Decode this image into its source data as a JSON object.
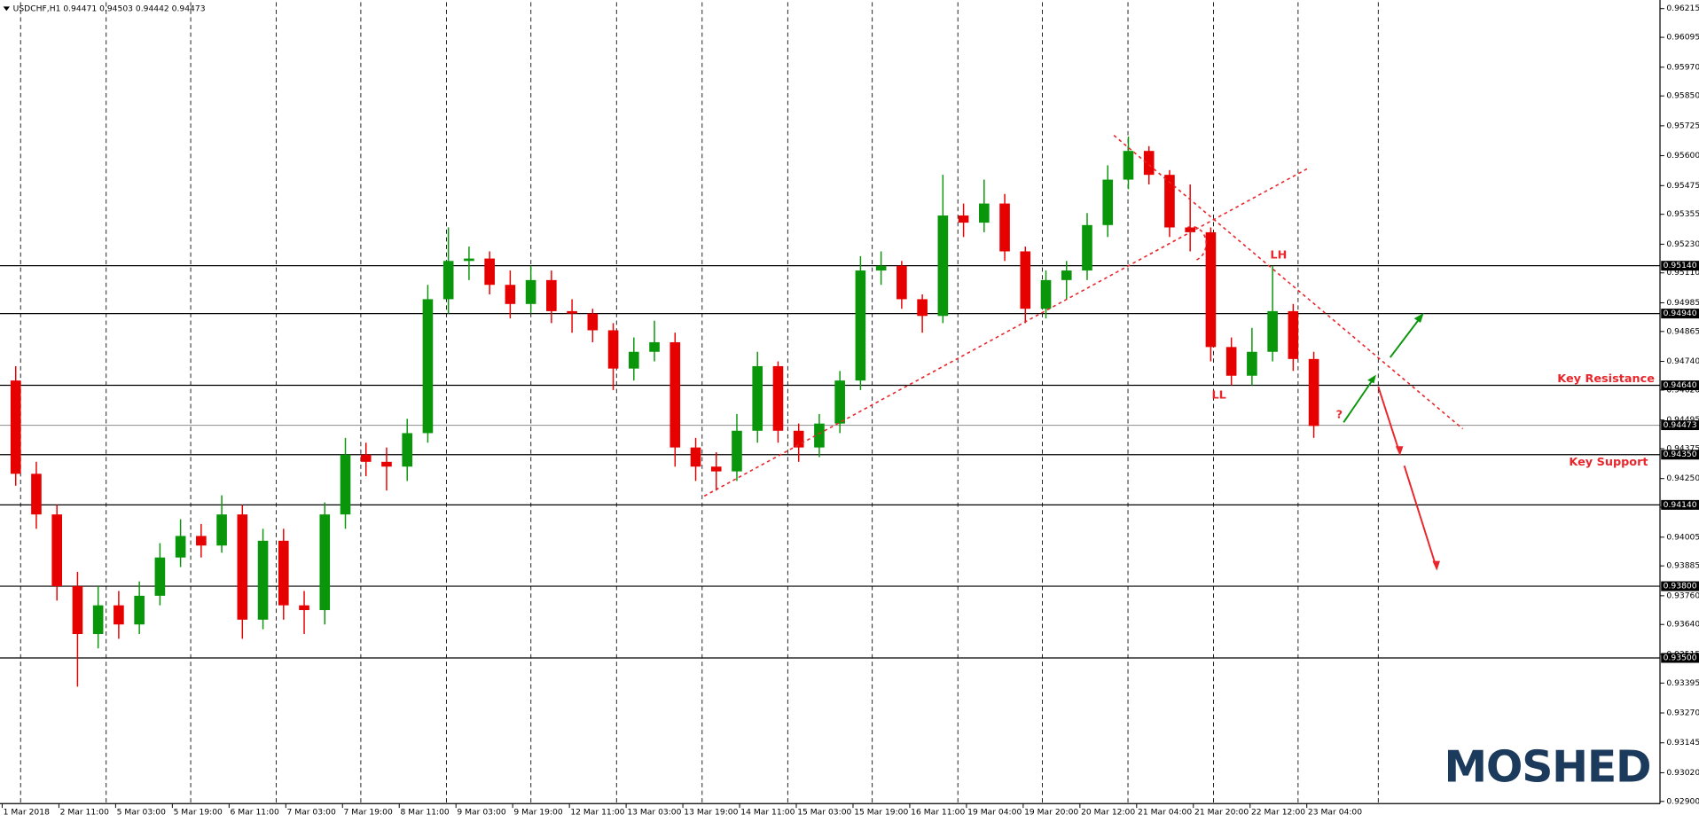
{
  "chart_data": {
    "type": "candlestick",
    "title": "USDCHF,H1  0.94471 0.94503 0.94442 0.94473",
    "watermark": "MOSHED",
    "up_color": "#0a960a",
    "down_color": "#e60000",
    "x_labels": [
      "1 Mar 2018",
      "2 Mar 11:00",
      "5 Mar 03:00",
      "5 Mar 19:00",
      "6 Mar 11:00",
      "7 Mar 03:00",
      "7 Mar 19:00",
      "8 Mar 11:00",
      "9 Mar 03:00",
      "9 Mar 19:00",
      "12 Mar 11:00",
      "13 Mar 03:00",
      "13 Mar 19:00",
      "14 Mar 11:00",
      "15 Mar 03:00",
      "15 Mar 19:00",
      "16 Mar 11:00",
      "19 Mar 04:00",
      "19 Mar 20:00",
      "20 Mar 12:00",
      "21 Mar 04:00",
      "21 Mar 20:00",
      "22 Mar 12:00",
      "23 Mar 04:00"
    ],
    "open": [
      0.9466,
      0.9427,
      0.941,
      0.938,
      0.936,
      0.9372,
      0.9364,
      0.9376,
      0.9392,
      0.9401,
      0.9397,
      0.941,
      0.9366,
      0.9399,
      0.9372,
      0.937,
      0.941,
      0.9435,
      0.9432,
      0.943,
      0.9444,
      0.95,
      0.9516,
      0.9517,
      0.9506,
      0.9498,
      0.9508,
      0.9495,
      0.9494,
      0.9487,
      0.9471,
      0.9478,
      0.9482,
      0.9438,
      0.943,
      0.9428,
      0.9445,
      0.9472,
      0.9445,
      0.9438,
      0.9448,
      0.9466,
      0.9512,
      0.9514,
      0.95,
      0.9493,
      0.9535,
      0.9532,
      0.954,
      0.952,
      0.9496,
      0.9508,
      0.9512,
      0.9531,
      0.955,
      0.9562,
      0.9552,
      0.953,
      0.9528,
      0.948,
      0.9468,
      0.9478,
      0.9495,
      0.9475
    ],
    "high": [
      0.9472,
      0.9432,
      0.9414,
      0.9386,
      0.938,
      0.9378,
      0.9382,
      0.9398,
      0.9408,
      0.9406,
      0.9418,
      0.9414,
      0.9404,
      0.9404,
      0.9378,
      0.9415,
      0.9442,
      0.944,
      0.9438,
      0.945,
      0.9506,
      0.953,
      0.9522,
      0.952,
      0.9512,
      0.9514,
      0.9512,
      0.95,
      0.9496,
      0.949,
      0.9484,
      0.9491,
      0.9486,
      0.9442,
      0.9436,
      0.9452,
      0.9478,
      0.9474,
      0.9448,
      0.9452,
      0.947,
      0.9518,
      0.952,
      0.9516,
      0.9502,
      0.9552,
      0.954,
      0.955,
      0.9544,
      0.9522,
      0.9512,
      0.9516,
      0.9536,
      0.9556,
      0.9568,
      0.9564,
      0.9554,
      0.9548,
      0.953,
      0.9484,
      0.9488,
      0.9514,
      0.9498,
      0.9478
    ],
    "low": [
      0.9422,
      0.9404,
      0.9374,
      0.9338,
      0.9354,
      0.9358,
      0.936,
      0.9372,
      0.9388,
      0.9392,
      0.9394,
      0.9358,
      0.9362,
      0.9366,
      0.936,
      0.9364,
      0.9404,
      0.9426,
      0.942,
      0.9424,
      0.944,
      0.9494,
      0.9508,
      0.9502,
      0.9492,
      0.9494,
      0.949,
      0.9486,
      0.9482,
      0.9462,
      0.9466,
      0.9474,
      0.943,
      0.9424,
      0.942,
      0.9424,
      0.944,
      0.944,
      0.9432,
      0.9434,
      0.9444,
      0.9462,
      0.9506,
      0.9496,
      0.9486,
      0.949,
      0.9526,
      0.9528,
      0.9516,
      0.949,
      0.9492,
      0.95,
      0.9508,
      0.9526,
      0.9546,
      0.9548,
      0.9526,
      0.952,
      0.9474,
      0.9464,
      0.9464,
      0.9474,
      0.947,
      0.9442
    ],
    "close": [
      0.9427,
      0.941,
      0.938,
      0.936,
      0.9372,
      0.9364,
      0.9376,
      0.9392,
      0.9401,
      0.9397,
      0.941,
      0.9366,
      0.9399,
      0.9372,
      0.937,
      0.941,
      0.9435,
      0.9432,
      0.943,
      0.9444,
      0.95,
      0.9516,
      0.9517,
      0.9506,
      0.9498,
      0.9508,
      0.9495,
      0.9494,
      0.9487,
      0.9471,
      0.9478,
      0.9482,
      0.9438,
      0.943,
      0.9428,
      0.9445,
      0.9472,
      0.9445,
      0.9438,
      0.9448,
      0.9466,
      0.9512,
      0.9514,
      0.95,
      0.9493,
      0.9535,
      0.9532,
      0.954,
      0.952,
      0.9496,
      0.9508,
      0.9512,
      0.9531,
      0.955,
      0.9562,
      0.9552,
      0.953,
      0.9528,
      0.948,
      0.9468,
      0.9478,
      0.9495,
      0.9475,
      0.9447
    ],
    "ylim": [
      0.92891,
      0.96242
    ],
    "yticks": [
      {
        "value": 0.96215,
        "label": "0.96215"
      },
      {
        "value": 0.96095,
        "label": "0.96095"
      },
      {
        "value": 0.9597,
        "label": "0.95970"
      },
      {
        "value": 0.9585,
        "label": "0.95850"
      },
      {
        "value": 0.95725,
        "label": "0.95725"
      },
      {
        "value": 0.956,
        "label": "0.95600"
      },
      {
        "value": 0.95475,
        "label": "0.95475"
      },
      {
        "value": 0.95355,
        "label": "0.95355"
      },
      {
        "value": 0.9523,
        "label": "0.95230"
      },
      {
        "value": 0.9511,
        "label": "0.95110"
      },
      {
        "value": 0.94985,
        "label": "0.94985"
      },
      {
        "value": 0.94865,
        "label": "0.94865"
      },
      {
        "value": 0.9474,
        "label": "0.94740"
      },
      {
        "value": 0.9462,
        "label": "0.94620"
      },
      {
        "value": 0.94495,
        "label": "0.94495"
      },
      {
        "value": 0.94375,
        "label": "0.94375"
      },
      {
        "value": 0.9425,
        "label": "0.94250"
      },
      {
        "value": 0.9413,
        "label": "0.94130"
      },
      {
        "value": 0.94005,
        "label": "0.94005"
      },
      {
        "value": 0.93885,
        "label": "0.93885"
      },
      {
        "value": 0.9376,
        "label": "0.93760"
      },
      {
        "value": 0.9364,
        "label": "0.93640"
      },
      {
        "value": 0.93515,
        "label": "0.93515"
      },
      {
        "value": 0.93395,
        "label": "0.93395"
      },
      {
        "value": 0.9327,
        "label": "0.93270"
      },
      {
        "value": 0.93145,
        "label": "0.93145"
      },
      {
        "value": 0.9302,
        "label": "0.93020"
      },
      {
        "value": 0.929,
        "label": "0.92900"
      }
    ],
    "levels": [
      {
        "value": 0.9514,
        "label": "0.95140"
      },
      {
        "value": 0.9494,
        "label": "0.94940"
      },
      {
        "value": 0.9464,
        "label": "0.94640"
      },
      {
        "value": 0.9435,
        "label": "0.94350"
      },
      {
        "value": 0.9414,
        "label": "0.94140"
      },
      {
        "value": 0.938,
        "label": "0.93800"
      },
      {
        "value": 0.935,
        "label": "0.93500"
      }
    ],
    "current_price": {
      "value": 0.94473,
      "label": "0.94473"
    },
    "annotations": [
      "Key Resistance",
      "Key Support",
      "LH",
      "LL",
      "?"
    ]
  }
}
